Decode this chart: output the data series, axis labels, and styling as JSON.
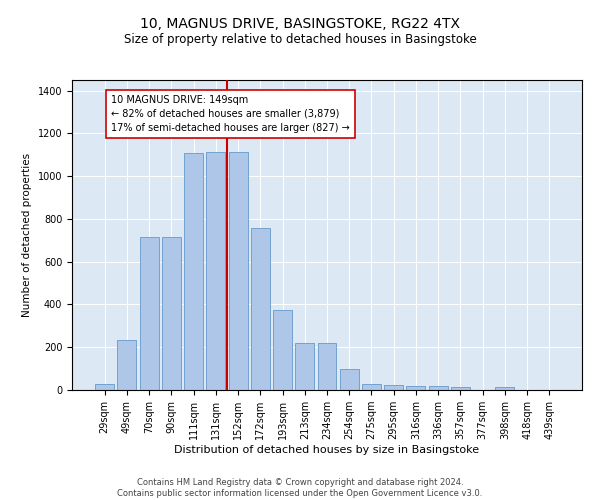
{
  "title": "10, MAGNUS DRIVE, BASINGSTOKE, RG22 4TX",
  "subtitle": "Size of property relative to detached houses in Basingstoke",
  "xlabel": "Distribution of detached houses by size in Basingstoke",
  "ylabel": "Number of detached properties",
  "categories": [
    "29sqm",
    "49sqm",
    "70sqm",
    "90sqm",
    "111sqm",
    "131sqm",
    "152sqm",
    "172sqm",
    "193sqm",
    "213sqm",
    "234sqm",
    "254sqm",
    "275sqm",
    "295sqm",
    "316sqm",
    "336sqm",
    "357sqm",
    "377sqm",
    "398sqm",
    "418sqm",
    "439sqm"
  ],
  "values": [
    30,
    235,
    715,
    715,
    1110,
    1115,
    1115,
    760,
    375,
    220,
    220,
    100,
    30,
    25,
    18,
    18,
    12,
    0,
    12,
    0,
    0
  ],
  "bar_color": "#aec6e8",
  "bar_edge_color": "#6699cc",
  "vline_x": 5.5,
  "vline_color": "#cc0000",
  "annotation_text": "10 MAGNUS DRIVE: 149sqm\n← 82% of detached houses are smaller (3,879)\n17% of semi-detached houses are larger (827) →",
  "annotation_box_color": "#ffffff",
  "annotation_box_edge": "#cc0000",
  "ylim": [
    0,
    1450
  ],
  "yticks": [
    0,
    200,
    400,
    600,
    800,
    1000,
    1200,
    1400
  ],
  "plot_bg_color": "#dce9f5",
  "footer": "Contains HM Land Registry data © Crown copyright and database right 2024.\nContains public sector information licensed under the Open Government Licence v3.0.",
  "title_fontsize": 10,
  "subtitle_fontsize": 8.5,
  "xlabel_fontsize": 8,
  "ylabel_fontsize": 7.5,
  "tick_fontsize": 7,
  "footer_fontsize": 6,
  "annotation_fontsize": 7
}
